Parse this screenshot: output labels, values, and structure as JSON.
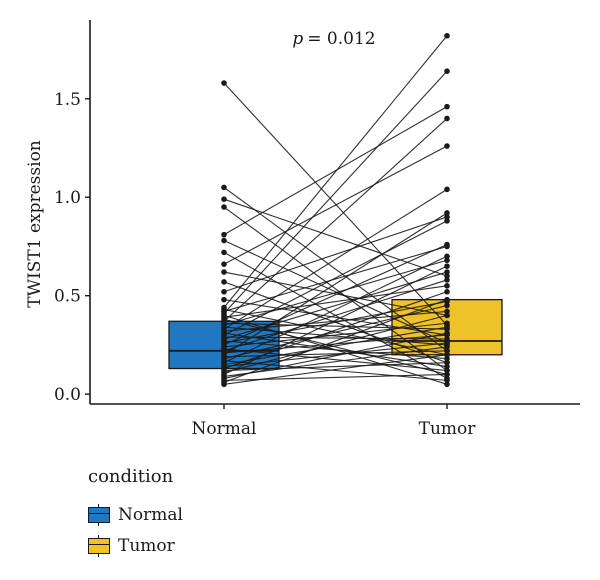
{
  "chart_data": {
    "type": "paired boxplot",
    "annotation": "= 0.012",
    "annotation_prefix": "p",
    "ylabel": "TWIST1 expression",
    "xlabel": "",
    "categories": [
      "Normal",
      "Tumor"
    ],
    "ylim": [
      -0.05,
      1.9
    ],
    "yticks": [
      0.0,
      0.5,
      1.0,
      1.5
    ],
    "ytick_labels": [
      "0.0",
      "0.5",
      "1.0",
      "1.5"
    ],
    "legend": {
      "title": "condition",
      "position": "bottom-left",
      "items": [
        {
          "label": "Normal",
          "color": "#1f78c1"
        },
        {
          "label": "Tumor",
          "color": "#efc22a"
        }
      ]
    },
    "boxes": [
      {
        "group": "Normal",
        "q1": 0.13,
        "median": 0.22,
        "q3": 0.37,
        "color": "#1f78c1"
      },
      {
        "group": "Tumor",
        "q1": 0.2,
        "median": 0.27,
        "q3": 0.48,
        "color": "#efc22a"
      }
    ],
    "pairs": [
      [
        1.58,
        0.35
      ],
      [
        1.05,
        0.22
      ],
      [
        0.99,
        0.6
      ],
      [
        0.95,
        0.12
      ],
      [
        0.81,
        1.46
      ],
      [
        0.78,
        0.26
      ],
      [
        0.72,
        0.08
      ],
      [
        0.66,
        1.26
      ],
      [
        0.62,
        0.4
      ],
      [
        0.57,
        0.16
      ],
      [
        0.52,
        0.9
      ],
      [
        0.48,
        0.3
      ],
      [
        0.44,
        1.82
      ],
      [
        0.43,
        0.2
      ],
      [
        0.42,
        0.75
      ],
      [
        0.41,
        1.64
      ],
      [
        0.4,
        0.05
      ],
      [
        0.39,
        0.55
      ],
      [
        0.38,
        0.1
      ],
      [
        0.37,
        1.4
      ],
      [
        0.36,
        0.33
      ],
      [
        0.35,
        0.68
      ],
      [
        0.34,
        0.25
      ],
      [
        0.33,
        1.04
      ],
      [
        0.32,
        0.42
      ],
      [
        0.31,
        0.14
      ],
      [
        0.3,
        0.88
      ],
      [
        0.29,
        0.28
      ],
      [
        0.28,
        0.62
      ],
      [
        0.27,
        0.18
      ],
      [
        0.26,
        0.47
      ],
      [
        0.25,
        0.76
      ],
      [
        0.24,
        0.36
      ],
      [
        0.23,
        0.12
      ],
      [
        0.22,
        0.58
      ],
      [
        0.21,
        0.3
      ],
      [
        0.2,
        0.92
      ],
      [
        0.19,
        0.22
      ],
      [
        0.18,
        0.45
      ],
      [
        0.17,
        0.07
      ],
      [
        0.16,
        0.7
      ],
      [
        0.15,
        0.34
      ],
      [
        0.14,
        0.26
      ],
      [
        0.13,
        0.52
      ],
      [
        0.12,
        0.16
      ],
      [
        0.11,
        0.4
      ],
      [
        0.1,
        0.65
      ],
      [
        0.09,
        0.24
      ],
      [
        0.08,
        0.31
      ],
      [
        0.07,
        0.1
      ],
      [
        0.06,
        0.48
      ],
      [
        0.05,
        0.2
      ]
    ]
  }
}
